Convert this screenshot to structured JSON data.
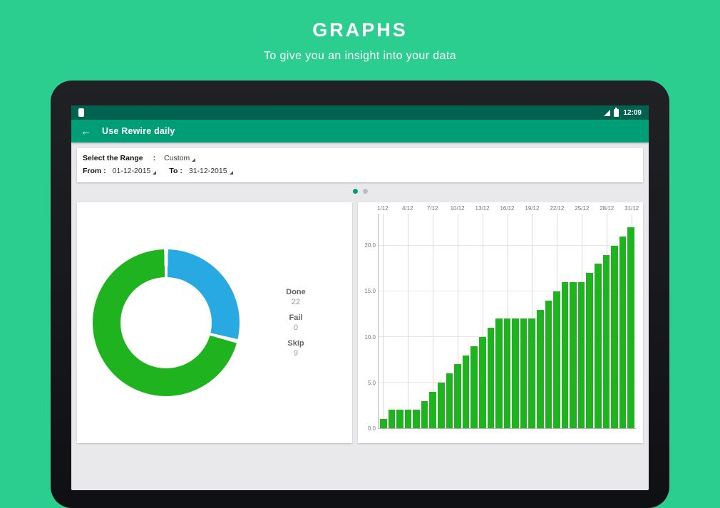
{
  "colors": {
    "page_bg": "#2CCE8F",
    "status_bar_bg": "#00624F",
    "app_bar_bg": "#009E76",
    "screen_bg": "#E9E9EB",
    "accent_green": "#1FB41F",
    "accent_blue": "#29A9E2",
    "dot_active": "#009E76",
    "dot_inactive": "#BDBDBD"
  },
  "hero": {
    "title": "GRAPHS",
    "subtitle": "To give you an insight into your data"
  },
  "status_bar": {
    "time": "12:09"
  },
  "app_bar": {
    "back_icon": "←",
    "title": "Use Rewire daily"
  },
  "range_panel": {
    "label": "Select the Range",
    "colon": ":",
    "range_value": "Custom",
    "from_label": "From :",
    "from_value": "01-12-2015",
    "to_label": "To :",
    "to_value": "31-12-2015"
  },
  "legend": [
    {
      "label": "Done",
      "value": "22"
    },
    {
      "label": "Fail",
      "value": "0"
    },
    {
      "label": "Skip",
      "value": "9"
    }
  ],
  "chart_data": [
    {
      "type": "pie",
      "donut": true,
      "segments_clockwise_from_top": [
        {
          "label": "Skip",
          "value": 9,
          "color": "#29A9E2"
        },
        {
          "label": "Done",
          "value": 22,
          "color": "#1FB41F"
        },
        {
          "label": "Fail",
          "value": 0
        }
      ]
    },
    {
      "type": "bar",
      "title": "",
      "xlabel": "",
      "ylabel": "",
      "values": [
        1,
        2,
        2,
        2,
        2,
        3,
        4,
        5,
        6,
        7,
        8,
        9,
        10,
        11,
        12,
        12,
        12,
        12,
        12,
        13,
        14,
        15,
        16,
        16,
        16,
        17,
        18,
        19,
        20,
        21,
        22
      ],
      "x_tick_days": [
        1,
        4,
        7,
        10,
        13,
        16,
        19,
        22,
        25,
        28,
        31
      ],
      "x_tick_labels": [
        "1/12",
        "4/12",
        "7/12",
        "10/12",
        "13/12",
        "16/12",
        "19/12",
        "22/12",
        "25/12",
        "28/12",
        "31/12"
      ],
      "y_ticks": [
        0,
        5,
        10,
        15,
        20
      ],
      "y_tick_labels": [
        "0.0",
        "5.0",
        "10.0",
        "15.0",
        "20.0"
      ],
      "ylim": [
        0,
        23.5
      ],
      "bar_color": "#1FB41F",
      "grid": true,
      "x_axis_position": "top-labels",
      "legend_position": "none"
    }
  ]
}
